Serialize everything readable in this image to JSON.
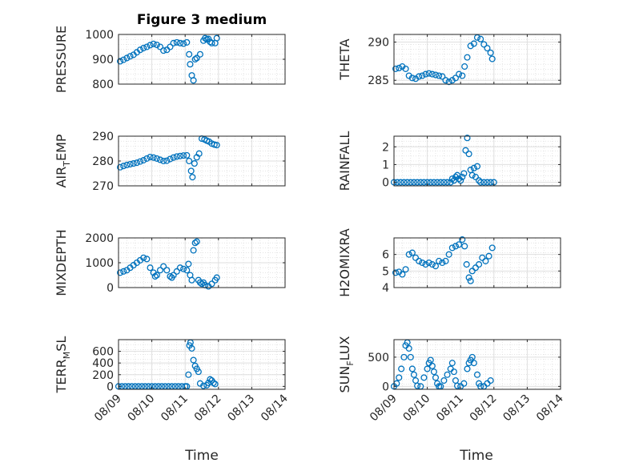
{
  "chart_data": {
    "type": "scatter",
    "title": "Figure 3 medium",
    "xlabel": "Time",
    "x_tick_labels": [
      "08/09",
      "08/10",
      "08/11",
      "08/12",
      "08/13",
      "08/14"
    ],
    "xlim": [
      0,
      5
    ],
    "marker_color": "#0072BD",
    "marker": "circle",
    "grid": true,
    "panels": [
      {
        "name": "pressure",
        "ylabel": "PRESSURE",
        "ylim": [
          800,
          1000
        ],
        "yticks": [
          800,
          900,
          1000
        ],
        "x": [
          0.05,
          0.15,
          0.25,
          0.35,
          0.45,
          0.55,
          0.65,
          0.75,
          0.85,
          0.95,
          1.05,
          1.15,
          1.25,
          1.35,
          1.45,
          1.55,
          1.65,
          1.75,
          1.85,
          1.95,
          2.05,
          2.12,
          2.15,
          2.2,
          2.25,
          2.3,
          2.35,
          2.45,
          2.55,
          2.6,
          2.65,
          2.7,
          2.75,
          2.8,
          2.9,
          2.95
        ],
        "y": [
          892,
          898,
          905,
          912,
          918,
          928,
          938,
          945,
          950,
          957,
          962,
          958,
          950,
          935,
          938,
          950,
          965,
          968,
          965,
          963,
          968,
          920,
          880,
          835,
          815,
          900,
          905,
          920,
          975,
          985,
          980,
          982,
          970,
          965,
          965,
          985
        ]
      },
      {
        "name": "theta",
        "ylabel": "THETA",
        "ylim": [
          284.5,
          291
        ],
        "yticks": [
          285,
          290
        ],
        "x": [
          0.05,
          0.15,
          0.25,
          0.35,
          0.45,
          0.55,
          0.65,
          0.75,
          0.85,
          0.95,
          1.05,
          1.15,
          1.25,
          1.35,
          1.45,
          1.55,
          1.65,
          1.75,
          1.85,
          1.95,
          2.05,
          2.12,
          2.2,
          2.3,
          2.4,
          2.5,
          2.6,
          2.7,
          2.8,
          2.9,
          2.95
        ],
        "y": [
          286.5,
          286.6,
          286.8,
          286.5,
          285.6,
          285.3,
          285.2,
          285.5,
          285.6,
          285.8,
          285.9,
          285.8,
          285.7,
          285.6,
          285.5,
          285.0,
          284.8,
          285.0,
          285.3,
          285.8,
          285.6,
          286.8,
          288.0,
          289.5,
          289.8,
          290.6,
          290.4,
          289.7,
          289.2,
          288.6,
          287.8
        ]
      },
      {
        "name": "air-temp",
        "ylabel": "AIR_TEMP",
        "ylim": [
          270,
          290
        ],
        "yticks": [
          270,
          280,
          290
        ],
        "x": [
          0.05,
          0.15,
          0.25,
          0.35,
          0.45,
          0.55,
          0.65,
          0.75,
          0.85,
          0.95,
          1.05,
          1.15,
          1.25,
          1.35,
          1.45,
          1.55,
          1.65,
          1.75,
          1.85,
          1.95,
          2.05,
          2.12,
          2.18,
          2.22,
          2.28,
          2.35,
          2.42,
          2.5,
          2.58,
          2.65,
          2.72,
          2.8,
          2.88,
          2.95
        ],
        "y": [
          277.5,
          278,
          278.4,
          278.7,
          279,
          279.3,
          279.8,
          280.3,
          281,
          281.6,
          281.4,
          281,
          280.5,
          280,
          280.1,
          280.8,
          281.4,
          281.8,
          282,
          282.2,
          282.3,
          280,
          276,
          273.5,
          279,
          281.5,
          283,
          289,
          288.7,
          288.2,
          287.8,
          287,
          286.6,
          286.4
        ]
      },
      {
        "name": "rainfall",
        "ylabel": "RAINFALL",
        "ylim": [
          -0.2,
          2.6
        ],
        "yticks": [
          0,
          1,
          2
        ],
        "x": [
          0.0,
          0.1,
          0.2,
          0.3,
          0.4,
          0.5,
          0.6,
          0.7,
          0.8,
          0.9,
          1.0,
          1.1,
          1.2,
          1.3,
          1.4,
          1.5,
          1.6,
          1.7,
          1.75,
          1.8,
          1.85,
          1.9,
          1.95,
          2.0,
          2.05,
          2.1,
          2.15,
          2.2,
          2.25,
          2.3,
          2.35,
          2.4,
          2.45,
          2.5,
          2.55,
          2.6,
          2.7,
          2.8,
          2.9,
          3.0
        ],
        "y": [
          0,
          0,
          0,
          0,
          0,
          0,
          0,
          0,
          0,
          0,
          0,
          0,
          0,
          0,
          0,
          0,
          0,
          0,
          0.2,
          0.1,
          0.3,
          0.4,
          0.2,
          0.1,
          0.3,
          0.5,
          1.8,
          2.5,
          1.6,
          0.7,
          0.4,
          0.8,
          0.3,
          0.9,
          0.1,
          0,
          0,
          0,
          0,
          0
        ]
      },
      {
        "name": "mixdepth",
        "ylabel": "MIXDEPTH",
        "ylim": [
          0,
          2000
        ],
        "yticks": [
          0,
          1000,
          2000
        ],
        "x": [
          0.05,
          0.15,
          0.25,
          0.35,
          0.45,
          0.55,
          0.65,
          0.75,
          0.85,
          0.95,
          1.05,
          1.1,
          1.15,
          1.25,
          1.35,
          1.45,
          1.55,
          1.6,
          1.65,
          1.75,
          1.85,
          1.95,
          2.05,
          2.1,
          2.15,
          2.2,
          2.25,
          2.3,
          2.35,
          2.4,
          2.45,
          2.5,
          2.55,
          2.6,
          2.7,
          2.8,
          2.9,
          2.95
        ],
        "y": [
          600,
          650,
          700,
          800,
          900,
          1000,
          1100,
          1200,
          1150,
          800,
          600,
          450,
          500,
          700,
          850,
          700,
          450,
          400,
          500,
          650,
          800,
          750,
          700,
          950,
          500,
          300,
          1500,
          1800,
          1850,
          300,
          200,
          150,
          200,
          100,
          50,
          150,
          300,
          400
        ]
      },
      {
        "name": "h2omixra",
        "ylabel": "H2OMIXRA",
        "ylim": [
          4,
          7
        ],
        "yticks": [
          4,
          5,
          6
        ],
        "x": [
          0.05,
          0.15,
          0.25,
          0.35,
          0.45,
          0.55,
          0.65,
          0.75,
          0.85,
          0.95,
          1.05,
          1.15,
          1.25,
          1.35,
          1.45,
          1.55,
          1.65,
          1.75,
          1.85,
          1.95,
          2.05,
          2.12,
          2.18,
          2.25,
          2.3,
          2.35,
          2.45,
          2.55,
          2.65,
          2.75,
          2.85,
          2.95
        ],
        "y": [
          4.9,
          4.95,
          4.8,
          5.1,
          6.0,
          6.1,
          5.8,
          5.6,
          5.5,
          5.4,
          5.5,
          5.4,
          5.3,
          5.6,
          5.5,
          5.6,
          6.0,
          6.4,
          6.5,
          6.6,
          6.9,
          6.5,
          5.4,
          4.6,
          4.4,
          5.0,
          5.2,
          5.4,
          5.8,
          5.6,
          5.9,
          6.4
        ]
      },
      {
        "name": "terr-msl",
        "ylabel": "TERR_MSL",
        "ylim": [
          -50,
          800
        ],
        "yticks": [
          0,
          200,
          400,
          600
        ],
        "x": [
          0.0,
          0.1,
          0.2,
          0.3,
          0.4,
          0.5,
          0.6,
          0.7,
          0.8,
          0.9,
          1.0,
          1.1,
          1.2,
          1.3,
          1.4,
          1.5,
          1.6,
          1.7,
          1.8,
          1.9,
          2.0,
          2.05,
          2.1,
          2.13,
          2.16,
          2.2,
          2.25,
          2.3,
          2.35,
          2.4,
          2.45,
          2.55,
          2.65,
          2.7,
          2.75,
          2.8,
          2.85,
          2.9
        ],
        "y": [
          0,
          0,
          0,
          0,
          0,
          0,
          0,
          0,
          0,
          0,
          0,
          0,
          0,
          0,
          0,
          0,
          0,
          0,
          0,
          0,
          0,
          0,
          200,
          700,
          750,
          650,
          450,
          350,
          300,
          250,
          50,
          10,
          20,
          60,
          120,
          100,
          60,
          40
        ]
      },
      {
        "name": "sun-flux",
        "ylabel": "SUN_FLUX",
        "ylim": [
          -50,
          800
        ],
        "yticks": [
          0,
          500
        ],
        "x": [
          0.0,
          0.08,
          0.15,
          0.22,
          0.3,
          0.35,
          0.4,
          0.45,
          0.5,
          0.55,
          0.6,
          0.65,
          0.7,
          0.8,
          0.9,
          1.0,
          1.05,
          1.1,
          1.15,
          1.2,
          1.25,
          1.3,
          1.35,
          1.4,
          1.5,
          1.6,
          1.7,
          1.75,
          1.8,
          1.85,
          1.9,
          2.0,
          2.1,
          2.2,
          2.25,
          2.3,
          2.35,
          2.4,
          2.5,
          2.55,
          2.6,
          2.7,
          2.8,
          2.9
        ],
        "y": [
          0,
          50,
          150,
          300,
          500,
          700,
          750,
          650,
          500,
          300,
          200,
          100,
          10,
          0,
          150,
          300,
          400,
          450,
          350,
          250,
          150,
          50,
          0,
          0,
          100,
          200,
          300,
          400,
          250,
          100,
          10,
          0,
          50,
          300,
          400,
          450,
          500,
          400,
          200,
          50,
          0,
          0,
          50,
          100
        ]
      }
    ]
  }
}
